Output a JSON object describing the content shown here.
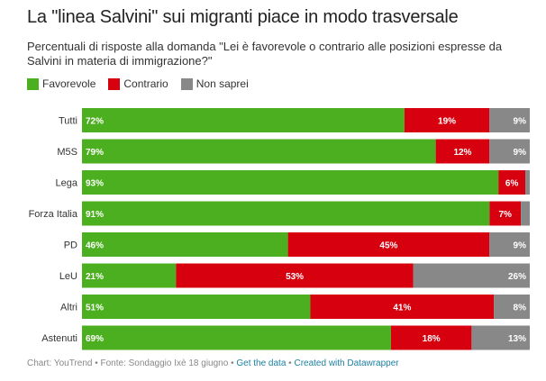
{
  "title": "La \"linea Salvini\" sui migranti piace in modo trasversale",
  "subtitle": "Percentuali di risposte alla domanda \"Lei è favorevole o contrario alle posizioni espresse da Salvini in materia di immigrazione?\"",
  "colors": {
    "Favorevole": "#4caf1f",
    "Contrario": "#d7000f",
    "Non saprei": "#888888"
  },
  "chart_data": {
    "type": "bar",
    "orientation": "horizontal",
    "stacked": true,
    "categories": [
      "Tutti",
      "M5S",
      "Lega",
      "Forza Italia",
      "PD",
      "LeU",
      "Altri",
      "Astenuti"
    ],
    "series": [
      {
        "name": "Favorevole",
        "values": [
          72,
          79,
          93,
          91,
          46,
          21,
          51,
          69
        ]
      },
      {
        "name": "Contrario",
        "values": [
          19,
          12,
          6,
          7,
          45,
          53,
          41,
          18
        ]
      },
      {
        "name": "Non saprei",
        "values": [
          9,
          9,
          1,
          2,
          9,
          26,
          8,
          13
        ]
      }
    ],
    "labels": {
      "Favorevole": [
        "72%",
        "79%",
        "93%",
        "91%",
        "46%",
        "21%",
        "51%",
        "69%"
      ],
      "Contrario": [
        "19%",
        "12%",
        "6%",
        "7%",
        "45%",
        "53%",
        "41%",
        "18%"
      ],
      "Non saprei": [
        "9%",
        "9%",
        "",
        "",
        "9%",
        "26%",
        "8%",
        "13%"
      ]
    },
    "xlim": [
      0,
      100
    ],
    "legend_position": "top-left"
  },
  "footer": {
    "source": "Chart: YouTrend • Fonte: Sondaggio Ixè 18 giugno • ",
    "get_data": "Get the data",
    "sep": " • ",
    "created": "Created with Datawrapper"
  }
}
